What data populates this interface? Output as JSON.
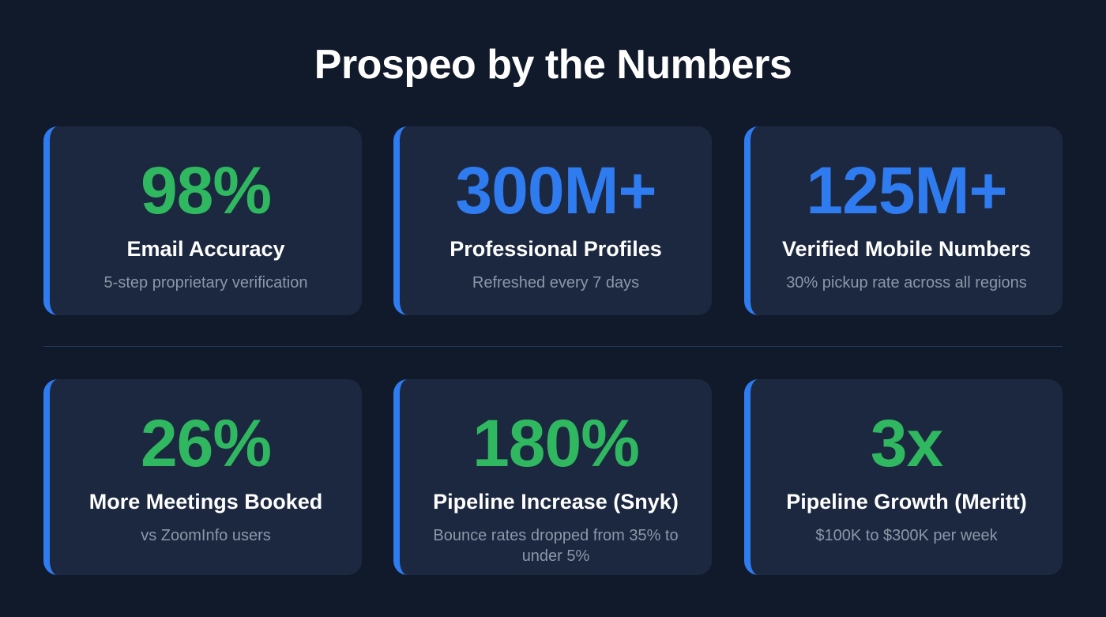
{
  "title": "Prospeo by the Numbers",
  "colors": {
    "green": "#2fb85f",
    "blue": "#2f7bf0",
    "accent_border": "#2f7bf0"
  },
  "stats": [
    {
      "value": "98%",
      "label": "Email Accuracy",
      "sub": "5-step proprietary verification",
      "color": "#2fb85f"
    },
    {
      "value": "300M+",
      "label": "Professional Profiles",
      "sub": "Refreshed every 7 days",
      "color": "#2f7bf0"
    },
    {
      "value": "125M+",
      "label": "Verified Mobile Numbers",
      "sub": "30% pickup rate across all regions",
      "color": "#2f7bf0"
    },
    {
      "value": "26%",
      "label": "More Meetings Booked",
      "sub": "vs ZoomInfo users",
      "color": "#2fb85f"
    },
    {
      "value": "180%",
      "label": "Pipeline Increase (Snyk)",
      "sub": "Bounce rates dropped from 35% to under 5%",
      "color": "#2fb85f"
    },
    {
      "value": "3x",
      "label": "Pipeline Growth (Meritt)",
      "sub": "$100K to $300K per week",
      "color": "#2fb85f"
    }
  ]
}
